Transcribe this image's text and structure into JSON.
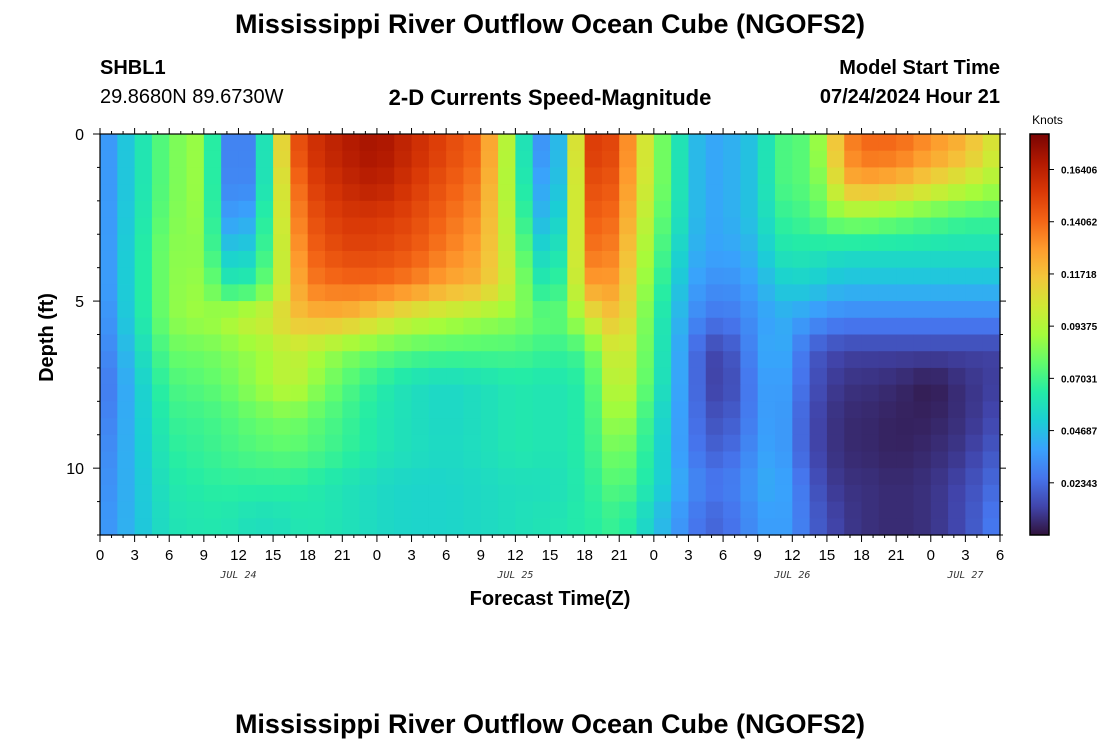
{
  "page": {
    "title": "Mississippi River Outflow Ocean Cube (NGOFS2)",
    "station_id": "SHBL1",
    "station_coords": "29.8680N  89.6730W",
    "subtitle": "2-D Currents Speed-Magnitude",
    "model_start_label": "Model Start Time",
    "model_start_value": "07/24/2024 Hour 21",
    "second_title": "Mississippi River Outflow Ocean Cube (NGOFS2)"
  },
  "chart_data": {
    "type": "heatmap",
    "title": "2-D Currents Speed-Magnitude",
    "xlabel": "Forecast Time(Z)",
    "ylabel": "Depth (ft)",
    "x_tick_labels": [
      "0",
      "3",
      "6",
      "9",
      "12",
      "15",
      "18",
      "21",
      "0",
      "3",
      "6",
      "9",
      "12",
      "15",
      "18",
      "21",
      "0",
      "3",
      "6",
      "9",
      "12",
      "15",
      "18",
      "21",
      "0",
      "3",
      "6"
    ],
    "x_hours_range": [
      0,
      78
    ],
    "date_labels": [
      {
        "label": "JUL 24",
        "hour": 12
      },
      {
        "label": "JUL 25",
        "hour": 36
      },
      {
        "label": "JUL 26",
        "hour": 60
      },
      {
        "label": "JUL 27",
        "hour": 75
      }
    ],
    "y_tick_labels": [
      "0",
      "5",
      "10"
    ],
    "y_tick_values": [
      0,
      5,
      10
    ],
    "ylim": [
      0,
      12
    ],
    "colorbar": {
      "unit": "Knots",
      "min": 0.0,
      "max": 0.18,
      "tick_labels": [
        "0.16406",
        "0.14062",
        "0.11718",
        "0.09375",
        "0.07031",
        "0.04687",
        "0.02343"
      ],
      "tick_values": [
        0.16406,
        0.14062,
        0.11718,
        0.09375,
        0.07031,
        0.04687,
        0.02343
      ],
      "palette": [
        "#30123b",
        "#4145ab",
        "#4675ed",
        "#39a2fc",
        "#1bcfd4",
        "#24eca6",
        "#61fc6c",
        "#a4fc3b",
        "#d1e834",
        "#f3c63a",
        "#fe9b2d",
        "#f36315",
        "#d93806",
        "#b11901",
        "#7a0403"
      ]
    },
    "depth_levels_ft": [
      0.5,
      1.5,
      2.5,
      3.5,
      4.5,
      5.5,
      6.5,
      7.5,
      8.5,
      9.5,
      10.5,
      11.5
    ],
    "time_hours": [
      0,
      6,
      9,
      10.5,
      12,
      13.5,
      15,
      16.5,
      18,
      21,
      24,
      27,
      30,
      33,
      36,
      37.5,
      39,
      40.5,
      42,
      43.5,
      45,
      48,
      51,
      52.5,
      54,
      57,
      58.5,
      60,
      61.5,
      63,
      64.5,
      66,
      69,
      72,
      75,
      78
    ],
    "speed_knots": [
      [
        0.03,
        0.08,
        0.09,
        0.04,
        0.02,
        0.04,
        0.08,
        0.14,
        0.155,
        0.165,
        0.17,
        0.16,
        0.15,
        0.14,
        0.08,
        0.04,
        0.03,
        0.06,
        0.15,
        0.155,
        0.145,
        0.09,
        0.05,
        0.04,
        0.04,
        0.05,
        0.07,
        0.075,
        0.075,
        0.1,
        0.13,
        0.14,
        0.14,
        0.13,
        0.12,
        0.1
      ],
      [
        0.03,
        0.08,
        0.09,
        0.04,
        0.022,
        0.04,
        0.08,
        0.13,
        0.15,
        0.16,
        0.165,
        0.155,
        0.145,
        0.135,
        0.08,
        0.045,
        0.035,
        0.06,
        0.145,
        0.15,
        0.14,
        0.09,
        0.05,
        0.04,
        0.04,
        0.05,
        0.07,
        0.075,
        0.075,
        0.09,
        0.12,
        0.125,
        0.12,
        0.11,
        0.1,
        0.09
      ],
      [
        0.03,
        0.082,
        0.088,
        0.045,
        0.03,
        0.05,
        0.08,
        0.125,
        0.145,
        0.155,
        0.155,
        0.15,
        0.14,
        0.13,
        0.085,
        0.05,
        0.04,
        0.065,
        0.14,
        0.145,
        0.135,
        0.085,
        0.05,
        0.04,
        0.04,
        0.05,
        0.065,
        0.07,
        0.07,
        0.08,
        0.085,
        0.085,
        0.08,
        0.075,
        0.07,
        0.07
      ],
      [
        0.03,
        0.085,
        0.085,
        0.055,
        0.045,
        0.058,
        0.08,
        0.12,
        0.14,
        0.15,
        0.15,
        0.145,
        0.135,
        0.125,
        0.09,
        0.06,
        0.05,
        0.07,
        0.135,
        0.14,
        0.13,
        0.08,
        0.045,
        0.04,
        0.038,
        0.045,
        0.06,
        0.062,
        0.062,
        0.06,
        0.058,
        0.058,
        0.058,
        0.058,
        0.058,
        0.058
      ],
      [
        0.03,
        0.085,
        0.088,
        0.068,
        0.06,
        0.07,
        0.085,
        0.115,
        0.135,
        0.14,
        0.14,
        0.135,
        0.125,
        0.12,
        0.095,
        0.068,
        0.06,
        0.075,
        0.125,
        0.13,
        0.125,
        0.075,
        0.04,
        0.035,
        0.032,
        0.04,
        0.05,
        0.052,
        0.052,
        0.048,
        0.046,
        0.046,
        0.046,
        0.046,
        0.046,
        0.046
      ],
      [
        0.028,
        0.085,
        0.09,
        0.09,
        0.1,
        0.1,
        0.105,
        0.115,
        0.12,
        0.12,
        0.11,
        0.1,
        0.095,
        0.09,
        0.085,
        0.08,
        0.075,
        0.08,
        0.1,
        0.11,
        0.12,
        0.07,
        0.035,
        0.028,
        0.025,
        0.035,
        0.042,
        0.04,
        0.036,
        0.032,
        0.03,
        0.03,
        0.03,
        0.03,
        0.03,
        0.03
      ],
      [
        0.025,
        0.078,
        0.08,
        0.082,
        0.085,
        0.088,
        0.092,
        0.1,
        0.095,
        0.085,
        0.078,
        0.074,
        0.072,
        0.072,
        0.072,
        0.07,
        0.068,
        0.068,
        0.072,
        0.09,
        0.11,
        0.07,
        0.03,
        0.015,
        0.012,
        0.035,
        0.045,
        0.035,
        0.02,
        0.015,
        0.012,
        0.012,
        0.012,
        0.012,
        0.012,
        0.012
      ],
      [
        0.022,
        0.072,
        0.075,
        0.078,
        0.082,
        0.088,
        0.092,
        0.1,
        0.09,
        0.075,
        0.065,
        0.058,
        0.055,
        0.058,
        0.062,
        0.062,
        0.06,
        0.062,
        0.065,
        0.085,
        0.105,
        0.068,
        0.03,
        0.015,
        0.01,
        0.032,
        0.042,
        0.032,
        0.018,
        0.012,
        0.008,
        0.008,
        0.006,
        0.002,
        0.008,
        0.012
      ],
      [
        0.025,
        0.068,
        0.07,
        0.072,
        0.075,
        0.078,
        0.08,
        0.082,
        0.078,
        0.07,
        0.062,
        0.058,
        0.055,
        0.058,
        0.062,
        0.062,
        0.06,
        0.062,
        0.065,
        0.08,
        0.095,
        0.062,
        0.03,
        0.018,
        0.015,
        0.032,
        0.042,
        0.03,
        0.015,
        0.01,
        0.006,
        0.006,
        0.004,
        0.004,
        0.008,
        0.015
      ],
      [
        0.028,
        0.065,
        0.068,
        0.07,
        0.072,
        0.074,
        0.075,
        0.076,
        0.074,
        0.068,
        0.062,
        0.058,
        0.056,
        0.058,
        0.062,
        0.062,
        0.06,
        0.062,
        0.065,
        0.075,
        0.085,
        0.06,
        0.03,
        0.022,
        0.02,
        0.035,
        0.042,
        0.03,
        0.015,
        0.01,
        0.006,
        0.006,
        0.004,
        0.006,
        0.01,
        0.02
      ],
      [
        0.03,
        0.062,
        0.065,
        0.066,
        0.066,
        0.066,
        0.066,
        0.066,
        0.064,
        0.06,
        0.056,
        0.054,
        0.054,
        0.056,
        0.058,
        0.058,
        0.058,
        0.06,
        0.064,
        0.07,
        0.078,
        0.058,
        0.035,
        0.028,
        0.026,
        0.038,
        0.044,
        0.034,
        0.02,
        0.012,
        0.008,
        0.008,
        0.006,
        0.008,
        0.014,
        0.025
      ],
      [
        0.032,
        0.06,
        0.062,
        0.062,
        0.06,
        0.058,
        0.058,
        0.06,
        0.062,
        0.06,
        0.056,
        0.054,
        0.054,
        0.056,
        0.058,
        0.06,
        0.06,
        0.062,
        0.064,
        0.066,
        0.07,
        0.05,
        0.03,
        0.022,
        0.022,
        0.035,
        0.04,
        0.035,
        0.022,
        0.015,
        0.01,
        0.008,
        0.006,
        0.008,
        0.015,
        0.03
      ]
    ]
  }
}
